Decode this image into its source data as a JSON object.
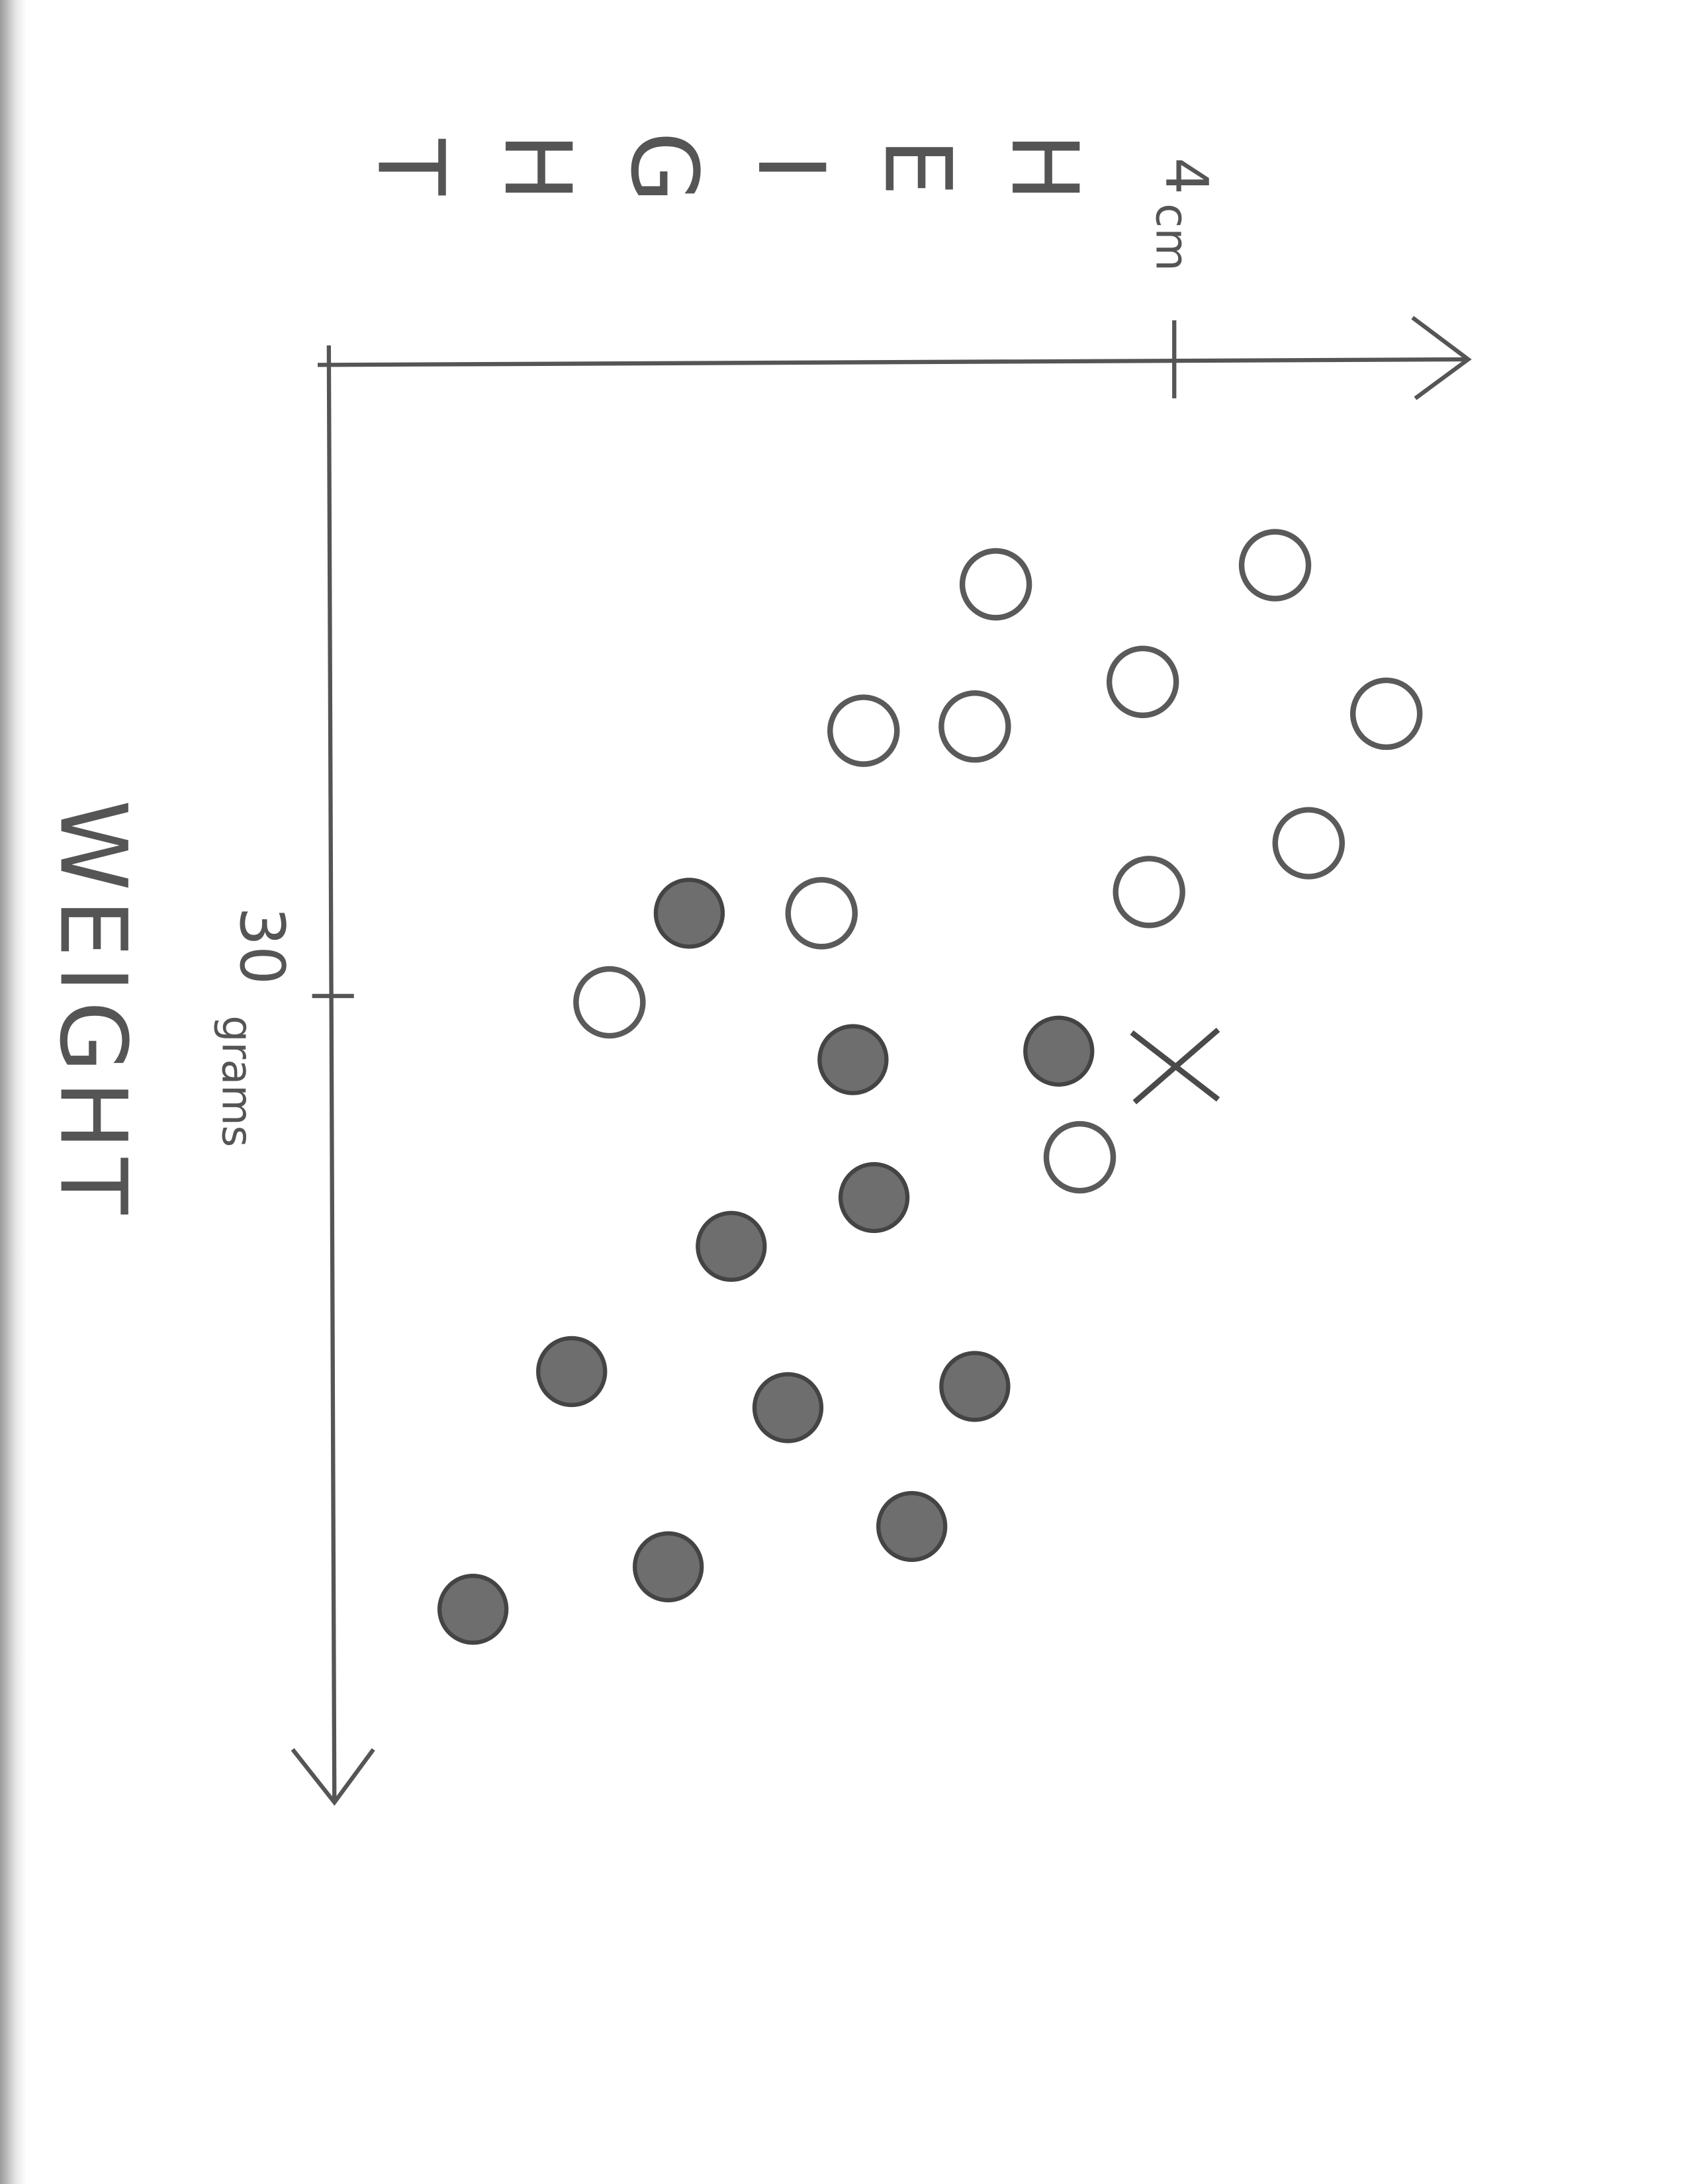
{
  "chart_data": {
    "type": "scatter",
    "x_label": "WEIGHT",
    "y_label": "HEIGHT",
    "x_unit": "grams",
    "y_unit": "cm",
    "xlim": [
      0,
      68
    ],
    "ylim": [
      0,
      5.4
    ],
    "xticks": [
      30
    ],
    "yticks": [
      4
    ],
    "series": [
      {
        "marker": "open-circle",
        "color": "#5a5a5a",
        "x": [
          9.7,
          10.6,
          15.2,
          16.7,
          17.5,
          17.3,
          22.8,
          25.1,
          26.1,
          30.3,
          37.6
        ],
        "values": [
          4.48,
          3.15,
          3.85,
          5.01,
          2.52,
          3.05,
          4.64,
          3.88,
          2.32,
          1.31,
          3.55
        ]
      },
      {
        "marker": "filled-circle",
        "color": "#6e6e6e",
        "x": [
          26.1,
          33.0,
          32.6,
          39.5,
          41.8,
          47.7,
          49.4,
          48.4,
          55.0,
          56.9,
          58.9
        ],
        "values": [
          1.69,
          2.47,
          3.45,
          2.57,
          1.89,
          1.13,
          2.16,
          3.05,
          2.75,
          1.59,
          0.66
        ]
      },
      {
        "marker": "cross",
        "color": "#4a4a4a",
        "x": [
          33.3
        ],
        "values": [
          4.01
        ]
      }
    ]
  }
}
